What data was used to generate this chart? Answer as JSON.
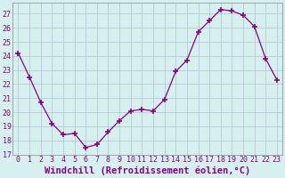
{
  "x": [
    0,
    1,
    2,
    3,
    4,
    5,
    6,
    7,
    8,
    9,
    10,
    11,
    12,
    13,
    14,
    15,
    16,
    17,
    18,
    19,
    20,
    21,
    22,
    23
  ],
  "y": [
    24.2,
    22.5,
    20.7,
    19.2,
    18.4,
    18.5,
    17.5,
    17.7,
    18.6,
    19.4,
    20.1,
    20.2,
    20.1,
    20.9,
    22.9,
    23.7,
    25.7,
    26.5,
    27.3,
    27.2,
    26.9,
    26.1,
    23.8,
    22.3
  ],
  "line_color": "#880088",
  "marker": "+",
  "marker_size": 4,
  "marker_linewidth": 1.2,
  "bg_color": "#d6f0f0",
  "grid_color": "#b8c8d8",
  "xlabel": "Windchill (Refroidissement éolien,°C)",
  "ylim": [
    17,
    27.8
  ],
  "xlim": [
    -0.5,
    23.5
  ],
  "yticks": [
    17,
    18,
    19,
    20,
    21,
    22,
    23,
    24,
    25,
    26,
    27
  ],
  "xticks": [
    0,
    1,
    2,
    3,
    4,
    5,
    6,
    7,
    8,
    9,
    10,
    11,
    12,
    13,
    14,
    15,
    16,
    17,
    18,
    19,
    20,
    21,
    22,
    23
  ],
  "tick_fontsize": 6,
  "xlabel_fontsize": 7.5,
  "tick_color": "#880088",
  "axis_color": "#880088",
  "font_family": "monospace",
  "line_width": 0.9
}
